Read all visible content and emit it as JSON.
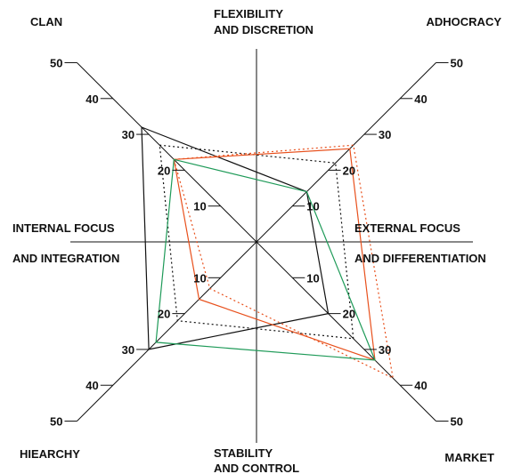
{
  "chart_data": {
    "type": "radar",
    "axes": [
      "CLAN",
      "ADHOCRACY",
      "MARKET",
      "HIEARCHY"
    ],
    "rmax": 50,
    "ticks": [
      "10",
      "20",
      "30",
      "40",
      "50"
    ],
    "tick_values": [
      10,
      20,
      30,
      40,
      50
    ],
    "quadrant_labels": {
      "top": [
        "FLEXIBILITY",
        "AND DISCRETION"
      ],
      "bottom": [
        "STABILITY",
        "AND CONTROL"
      ],
      "left": [
        "INTERNAL FOCUS",
        "AND INTEGRATION"
      ],
      "right": [
        "EXTERNAL FOCUS",
        "AND DIFFERENTIATION"
      ]
    },
    "series": [
      {
        "color": "#111111",
        "dash": "solid",
        "values": [
          32,
          14,
          20,
          30
        ]
      },
      {
        "color": "#111111",
        "dash": "dotted",
        "values": [
          27,
          22,
          27,
          22
        ]
      },
      {
        "color": "#e8501c",
        "dash": "solid",
        "values": [
          23,
          26,
          33,
          16
        ]
      },
      {
        "color": "#e8501c",
        "dash": "dotted",
        "values": [
          23,
          27,
          38,
          13
        ]
      },
      {
        "color": "#1e9a58",
        "dash": "solid",
        "values": [
          23,
          14,
          33,
          28
        ]
      }
    ]
  }
}
